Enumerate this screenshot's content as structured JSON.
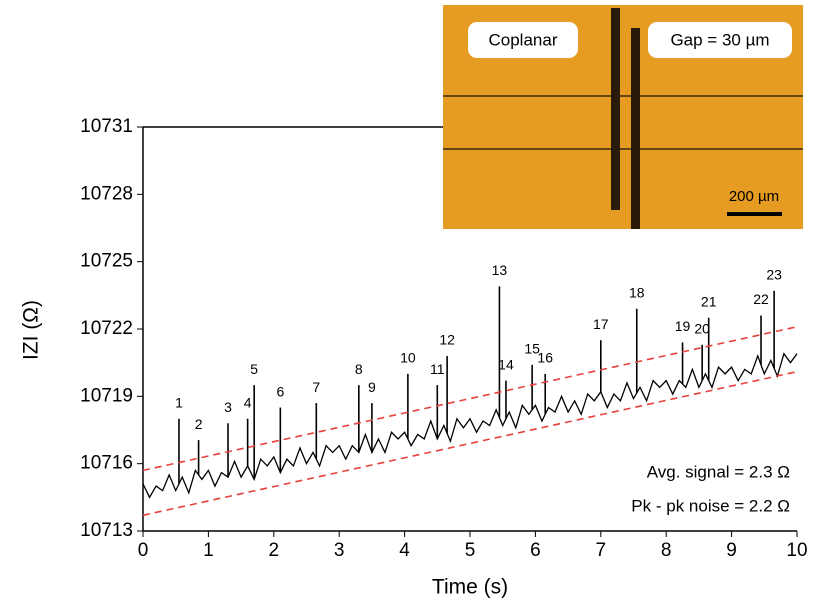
{
  "chart_data": {
    "type": "line",
    "ylabel": "IZI (Ω)",
    "xlabel": "Time (s)",
    "xlim": [
      0,
      10
    ],
    "xticks": [
      0,
      1,
      2,
      3,
      4,
      5,
      6,
      7,
      8,
      9,
      10
    ],
    "ylim": [
      10713,
      10731
    ],
    "yticks": [
      10713,
      10716,
      10719,
      10722,
      10725,
      10728,
      10731
    ],
    "color": "#000000",
    "x": [
      0,
      0.1,
      0.2,
      0.3,
      0.4,
      0.5,
      0.6,
      0.7,
      0.8,
      0.9,
      1,
      1.1,
      1.2,
      1.3,
      1.4,
      1.5,
      1.6,
      1.7,
      1.8,
      1.9,
      2,
      2.1,
      2.2,
      2.3,
      2.4,
      2.5,
      2.6,
      2.7,
      2.8,
      2.9,
      3,
      3.1,
      3.2,
      3.3,
      3.4,
      3.5,
      3.6,
      3.7,
      3.8,
      3.9,
      4,
      4.1,
      4.2,
      4.3,
      4.4,
      4.5,
      4.6,
      4.7,
      4.8,
      4.9,
      5,
      5.1,
      5.2,
      5.3,
      5.4,
      5.5,
      5.6,
      5.7,
      5.8,
      5.9,
      6,
      6.1,
      6.2,
      6.3,
      6.4,
      6.5,
      6.6,
      6.7,
      6.8,
      6.9,
      7,
      7.1,
      7.2,
      7.3,
      7.4,
      7.5,
      7.6,
      7.7,
      7.8,
      7.9,
      8,
      8.1,
      8.2,
      8.3,
      8.4,
      8.5,
      8.6,
      8.7,
      8.8,
      8.9,
      9,
      9.1,
      9.2,
      9.3,
      9.4,
      9.5,
      9.6,
      9.7,
      9.8,
      9.9,
      10
    ],
    "values": [
      10715.1,
      10714.5,
      10715.0,
      10714.8,
      10715.5,
      10714.8,
      10715.4,
      10714.7,
      10715.7,
      10715.3,
      10715.7,
      10715.0,
      10715.6,
      10715.4,
      10716.1,
      10715.4,
      10715.9,
      10715.3,
      10716.2,
      10715.9,
      10716.3,
      10715.6,
      10716.2,
      10715.9,
      10716.7,
      10716.0,
      10716.5,
      10715.9,
      10716.8,
      10716.5,
      10716.8,
      10716.2,
      10716.8,
      10716.5,
      10717.3,
      10716.5,
      10717.1,
      10716.5,
      10717.4,
      10717.1,
      10717.4,
      10716.8,
      10717.3,
      10717.1,
      10717.9,
      10717.1,
      10717.7,
      10717.0,
      10718.0,
      10717.6,
      10718.0,
      10717.4,
      10717.9,
      10717.7,
      10718.4,
      10717.7,
      10718.3,
      10717.6,
      10718.6,
      10718.2,
      10718.6,
      10717.9,
      10718.5,
      10718.3,
      10719.0,
      10718.3,
      10718.8,
      10718.2,
      10719.1,
      10718.8,
      10719.2,
      10718.5,
      10719.1,
      10718.8,
      10719.6,
      10718.9,
      10719.4,
      10718.8,
      10719.7,
      10719.4,
      10719.7,
      10719.1,
      10719.7,
      10719.4,
      10720.2,
      10719.4,
      10720.0,
      10719.4,
      10720.3,
      10720.0,
      10720.3,
      10719.7,
      10720.2,
      10720.0,
      10720.8,
      10720.0,
      10720.6,
      10719.9,
      10720.9,
      10720.5,
      10720.9
    ],
    "peak_labels": [
      "1",
      "2",
      "3",
      "4",
      "5",
      "6",
      "7",
      "8",
      "9",
      "10",
      "11",
      "12",
      "13",
      "14",
      "15",
      "16",
      "17",
      "18",
      "19",
      "20",
      "21",
      "22",
      "23"
    ],
    "peak_x": [
      0.55,
      0.85,
      1.3,
      1.6,
      1.7,
      2.1,
      2.65,
      3.3,
      3.5,
      4.05,
      4.5,
      4.65,
      5.45,
      5.55,
      5.95,
      6.15,
      7.0,
      7.55,
      8.25,
      8.55,
      8.65,
      9.45,
      9.65
    ],
    "peak_values": [
      10718.0,
      10717.05,
      10717.8,
      10718.0,
      10719.5,
      10718.5,
      10718.7,
      10719.5,
      10718.7,
      10720.0,
      10719.5,
      10720.8,
      10723.9,
      10719.7,
      10720.4,
      10720.0,
      10721.5,
      10722.9,
      10721.4,
      10721.3,
      10722.5,
      10722.6,
      10723.7
    ],
    "bounds": [
      {
        "x": [
          0,
          10
        ],
        "values": [
          10715.7,
          10722.1
        ],
        "color": "#e8413c"
      },
      {
        "x": [
          0,
          10
        ],
        "values": [
          10713.7,
          10720.1
        ],
        "color": "#e8413c"
      }
    ],
    "annotations": [
      "Avg. signal = 2.3 Ω",
      "Pk - pk noise = 2.2 Ω"
    ],
    "inset_labels": [
      "Coplanar",
      "Gap = 30 µm",
      "200 µm"
    ]
  }
}
